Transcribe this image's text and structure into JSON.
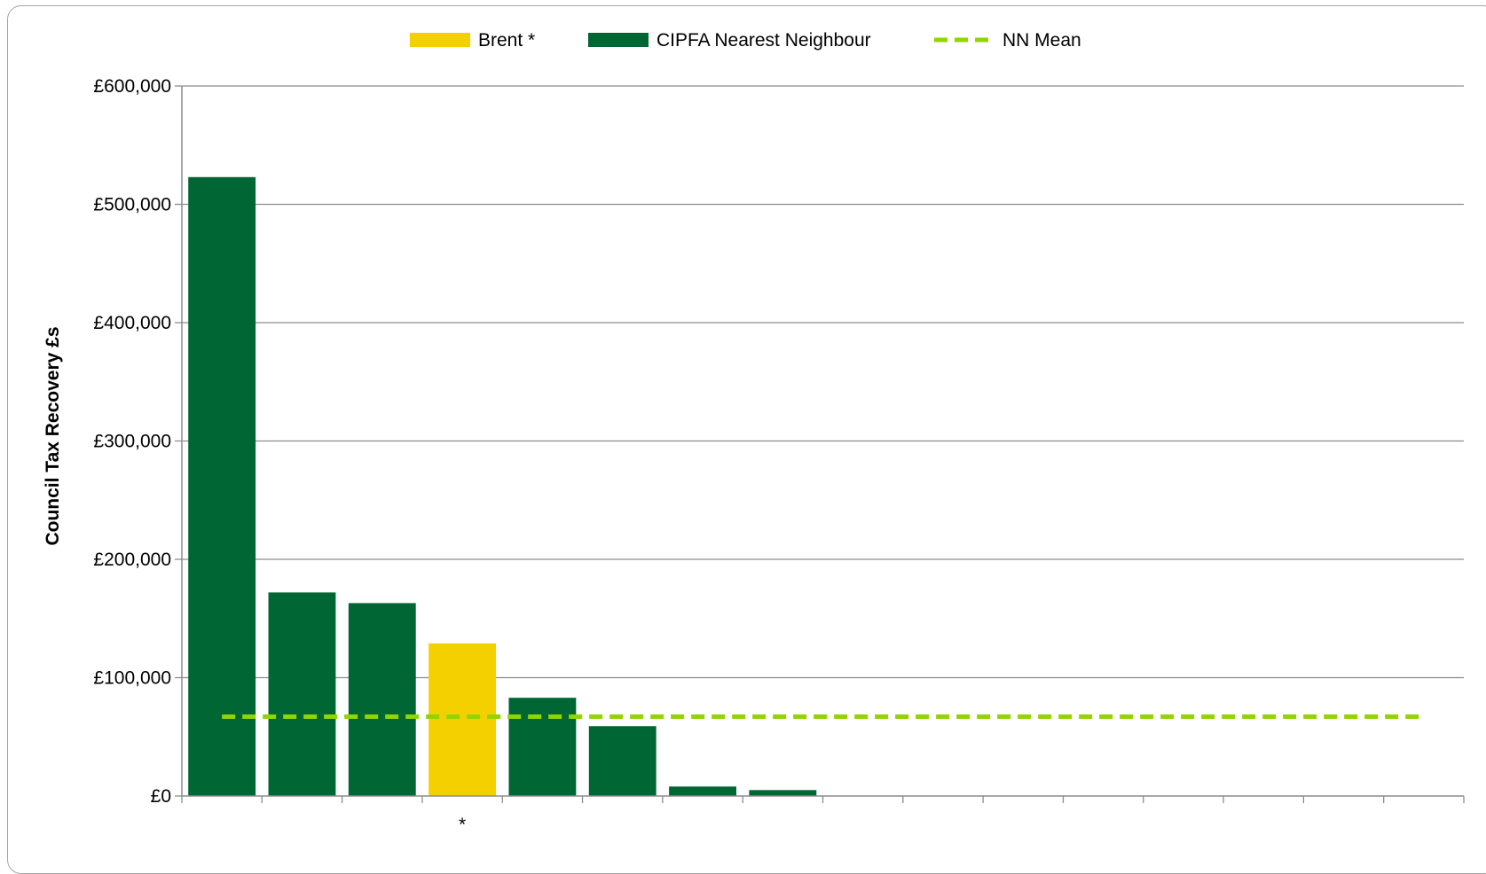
{
  "chart_data": {
    "type": "bar",
    "title": "",
    "xlabel": "",
    "ylabel": "Council Tax Recovery £s",
    "ylim": [
      0,
      600000
    ],
    "y_ticks": [
      0,
      100000,
      200000,
      300000,
      400000,
      500000,
      600000
    ],
    "y_tick_labels": [
      "£0",
      "£100,000",
      "£200,000",
      "£300,000",
      "£400,000",
      "£500,000",
      "£600,000"
    ],
    "category_count": 16,
    "category_labels": [
      "",
      "",
      "",
      "*",
      "",
      "",
      "",
      "",
      "",
      "",
      "",
      "",
      "",
      "",
      "",
      ""
    ],
    "series": [
      {
        "name": "CIPFA Nearest Neighbour",
        "color": "#006633",
        "values": [
          523000,
          172000,
          163000,
          null,
          83000,
          59000,
          8000,
          5000,
          0,
          0,
          0,
          0,
          0,
          0,
          0,
          0
        ]
      },
      {
        "name": "Brent *",
        "color": "#f5d000",
        "values": [
          null,
          null,
          null,
          129000,
          null,
          null,
          null,
          null,
          null,
          null,
          null,
          null,
          null,
          null,
          null,
          null
        ]
      }
    ],
    "reference_line": {
      "name": "NN Mean",
      "value": 67000,
      "color": "#92d400",
      "style": "dashed"
    },
    "legend": {
      "placement": "top-center",
      "entries": [
        {
          "label": "Brent *",
          "color": "#f5d000",
          "kind": "bar"
        },
        {
          "label": "CIPFA Nearest Neighbour",
          "color": "#006633",
          "kind": "bar"
        },
        {
          "label": "NN Mean",
          "color": "#92d400",
          "kind": "dashed-line"
        }
      ]
    },
    "grid": true,
    "gridline_color": "#8c8c8c"
  }
}
